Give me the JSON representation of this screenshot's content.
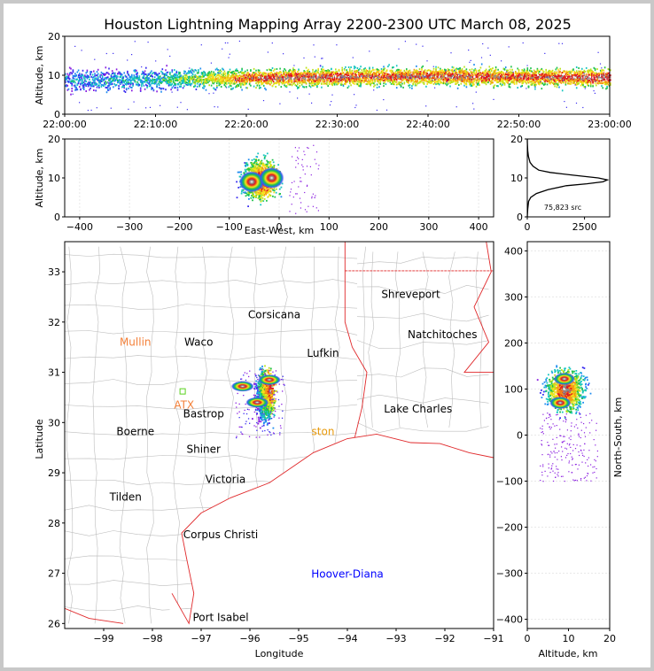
{
  "chart_data": [
    {
      "panel": "altitude-vs-time",
      "type": "heatmap",
      "title": "Houston Lightning Mapping Array 2200-2300 UTC March 08, 2025",
      "ylabel": "Altitude, km",
      "ylim": [
        0,
        20
      ],
      "yticks": [
        "0",
        "10",
        "20"
      ],
      "xticks": [
        "22:00:00",
        "22:10:00",
        "22:20:00",
        "22:30:00",
        "22:40:00",
        "22:50:00",
        "23:00:00"
      ],
      "band_center_alt_km": [
        8.5,
        8.6,
        8.8,
        9.0,
        9.2,
        9.4,
        9.5,
        9.6,
        9.7,
        9.6,
        9.5,
        9.4,
        9.3
      ],
      "band_time_min": [
        0,
        5,
        10,
        15,
        20,
        25,
        30,
        35,
        40,
        45,
        50,
        55,
        60
      ],
      "band_intensity": [
        0.25,
        0.3,
        0.35,
        0.55,
        0.8,
        0.85,
        0.85,
        0.8,
        0.85,
        0.85,
        0.8,
        0.85,
        0.9
      ]
    },
    {
      "panel": "altitude-vs-east-west",
      "type": "heatmap",
      "xlabel": "East-West, km",
      "ylabel": "Altitude, km",
      "xlim": [
        -430,
        430
      ],
      "ylim": [
        0,
        20
      ],
      "xticks": [
        "−400",
        "−300",
        "−200",
        "−100",
        "0",
        "100",
        "200",
        "300",
        "400"
      ],
      "yticks": [
        "0",
        "10",
        "20"
      ],
      "cores": [
        {
          "x": -55,
          "y": 9
        },
        {
          "x": -15,
          "y": 10
        }
      ]
    },
    {
      "panel": "altitude-histogram",
      "type": "line",
      "ylim": [
        0,
        20
      ],
      "xlim": [
        0,
        3600
      ],
      "xticks": [
        "0",
        "2500"
      ],
      "yticks": [
        "0",
        "10",
        "20"
      ],
      "annotation": "75,823 src",
      "x": [
        0,
        20,
        60,
        150,
        400,
        900,
        1700,
        2600,
        3300,
        3500,
        3100,
        2000,
        1000,
        500,
        250,
        120,
        50,
        20,
        5,
        0
      ],
      "y": [
        0,
        2,
        4,
        5,
        6,
        7,
        8,
        8.5,
        9,
        9.5,
        10,
        10.7,
        11.4,
        12,
        13,
        14,
        15.5,
        17,
        19,
        20
      ]
    },
    {
      "panel": "plan-view",
      "type": "scatter",
      "xlabel": "Longitude",
      "ylabel": "Latitude",
      "xlim": [
        -99.8,
        -91
      ],
      "ylim": [
        25.9,
        33.6
      ],
      "xticks": [
        "−99",
        "−98",
        "−97",
        "−96",
        "−95",
        "−94",
        "−93",
        "−92",
        "−91"
      ],
      "yticks": [
        "26",
        "27",
        "28",
        "29",
        "30",
        "31",
        "32",
        "33"
      ],
      "places": [
        {
          "name": "Shreveport",
          "lon": -92.7,
          "lat": 32.55,
          "color": "#000000"
        },
        {
          "name": "Corsicana",
          "lon": -95.5,
          "lat": 32.15,
          "color": "#000000"
        },
        {
          "name": "Natchitoches",
          "lon": -92.05,
          "lat": 31.75,
          "color": "#000000"
        },
        {
          "name": "Mullin",
          "lon": -98.35,
          "lat": 31.6,
          "color": "#f4813a"
        },
        {
          "name": "Waco",
          "lon": -97.05,
          "lat": 31.6,
          "color": "#000000"
        },
        {
          "name": "Lufkin",
          "lon": -94.5,
          "lat": 31.38,
          "color": "#000000"
        },
        {
          "name": "ATX",
          "lon": -97.35,
          "lat": 30.35,
          "color": "#f4813a"
        },
        {
          "name": "Bastrop",
          "lon": -96.95,
          "lat": 30.17,
          "color": "#000000"
        },
        {
          "name": "Lake Charles",
          "lon": -92.55,
          "lat": 30.27,
          "color": "#000000"
        },
        {
          "name": "Boerne",
          "lon": -98.35,
          "lat": 29.82,
          "color": "#000000"
        },
        {
          "name": "ston",
          "lon": -94.5,
          "lat": 29.82,
          "color": "#e89a0c"
        },
        {
          "name": "Shiner",
          "lon": -96.95,
          "lat": 29.47,
          "color": "#000000"
        },
        {
          "name": "Victoria",
          "lon": -96.5,
          "lat": 28.87,
          "color": "#000000"
        },
        {
          "name": "Tilden",
          "lon": -98.55,
          "lat": 28.52,
          "color": "#000000"
        },
        {
          "name": "Corpus Christi",
          "lon": -96.6,
          "lat": 27.77,
          "color": "#000000"
        },
        {
          "name": "Hoover-Diana",
          "lon": -94.0,
          "lat": 26.98,
          "color": "#0000ff"
        },
        {
          "name": "Port Isabel",
          "lon": -96.6,
          "lat": 26.12,
          "color": "#000000"
        }
      ],
      "storm_cores": [
        {
          "lon": -95.6,
          "lat": 30.85
        },
        {
          "lon": -95.85,
          "lat": 30.4
        },
        {
          "lon": -96.15,
          "lat": 30.72
        }
      ]
    },
    {
      "panel": "north-south-vs-altitude",
      "type": "heatmap",
      "xlabel": "Altitude, km",
      "ylabel": "North-South, km",
      "xlim": [
        0,
        20
      ],
      "ylim": [
        -420,
        420
      ],
      "xticks": [
        "0",
        "10",
        "20"
      ],
      "yticks": [
        "−400",
        "−300",
        "−200",
        "−100",
        "0",
        "100",
        "200",
        "300",
        "400"
      ],
      "cores": [
        {
          "x": 9,
          "y": 122
        },
        {
          "x": 8,
          "y": 70
        }
      ]
    }
  ],
  "colors": {
    "coast": "#e0282a",
    "county": "#bdbdbd",
    "axis": "#000000"
  }
}
